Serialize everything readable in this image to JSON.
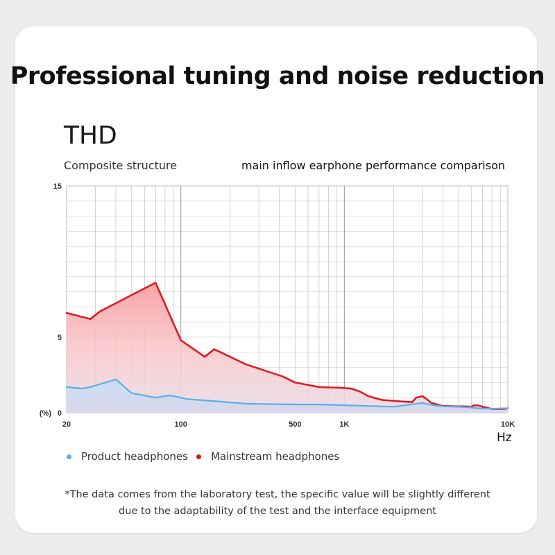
{
  "headline": "Professional tuning and noise reduction",
  "chart_data": {
    "type": "area",
    "title": "THD",
    "subtitle_left": "Composite structure",
    "subtitle_right": "main inflow earphone performance comparison",
    "xlabel": "Hz",
    "ylabel": "(%)",
    "x_scale": "log",
    "xlim": [
      20,
      10000
    ],
    "ylim": [
      0,
      15
    ],
    "x_ticks": [
      {
        "value": 20,
        "label": "20"
      },
      {
        "value": 100,
        "label": "100"
      },
      {
        "value": 500,
        "label": "500"
      },
      {
        "value": 1000,
        "label": "1K"
      },
      {
        "value": 10000,
        "label": "10K"
      }
    ],
    "y_ticks": [
      {
        "value": 0,
        "label": "0"
      },
      {
        "value": 5,
        "label": "5"
      },
      {
        "value": 15,
        "label": "15"
      }
    ],
    "grid": true,
    "legend_position": "bottom-left",
    "series": [
      {
        "name": "Product headphones",
        "color": "#5aaee8",
        "x": [
          20,
          25,
          28,
          40,
          50,
          70,
          85,
          95,
          100,
          110,
          150,
          250,
          500,
          700,
          1000,
          2000,
          3000,
          3500,
          4000,
          5000,
          6000,
          6500,
          7000,
          8000,
          9500,
          10000
        ],
        "values": [
          1.7,
          1.6,
          1.7,
          2.2,
          1.3,
          1.0,
          1.15,
          1.05,
          1.0,
          0.9,
          0.8,
          0.6,
          0.55,
          0.55,
          0.5,
          0.4,
          0.65,
          0.5,
          0.42,
          0.4,
          0.35,
          0.3,
          0.28,
          0.27,
          0.3,
          0.28
        ]
      },
      {
        "name": "Mainstream headphones",
        "color": "#e0191e",
        "x": [
          20,
          28,
          32,
          70,
          100,
          140,
          160,
          250,
          420,
          500,
          700,
          950,
          1100,
          1250,
          1400,
          1700,
          2200,
          2600,
          2750,
          3000,
          3150,
          3400,
          4000,
          4800,
          5500,
          6000,
          6200,
          6600,
          7000,
          8000,
          9500,
          10000
        ],
        "values": [
          6.6,
          6.2,
          6.7,
          8.6,
          4.8,
          3.7,
          4.2,
          3.2,
          2.4,
          2.0,
          1.7,
          1.65,
          1.6,
          1.4,
          1.1,
          0.85,
          0.75,
          0.7,
          1.0,
          1.1,
          0.95,
          0.65,
          0.45,
          0.42,
          0.42,
          0.4,
          0.5,
          0.48,
          0.4,
          0.25,
          0.25,
          0.3
        ]
      }
    ]
  },
  "footnote": {
    "line1": "*The data comes from the laboratory test, the specific value will be slightly different",
    "line2": "due to the adaptability of the test and the interface equipment"
  }
}
